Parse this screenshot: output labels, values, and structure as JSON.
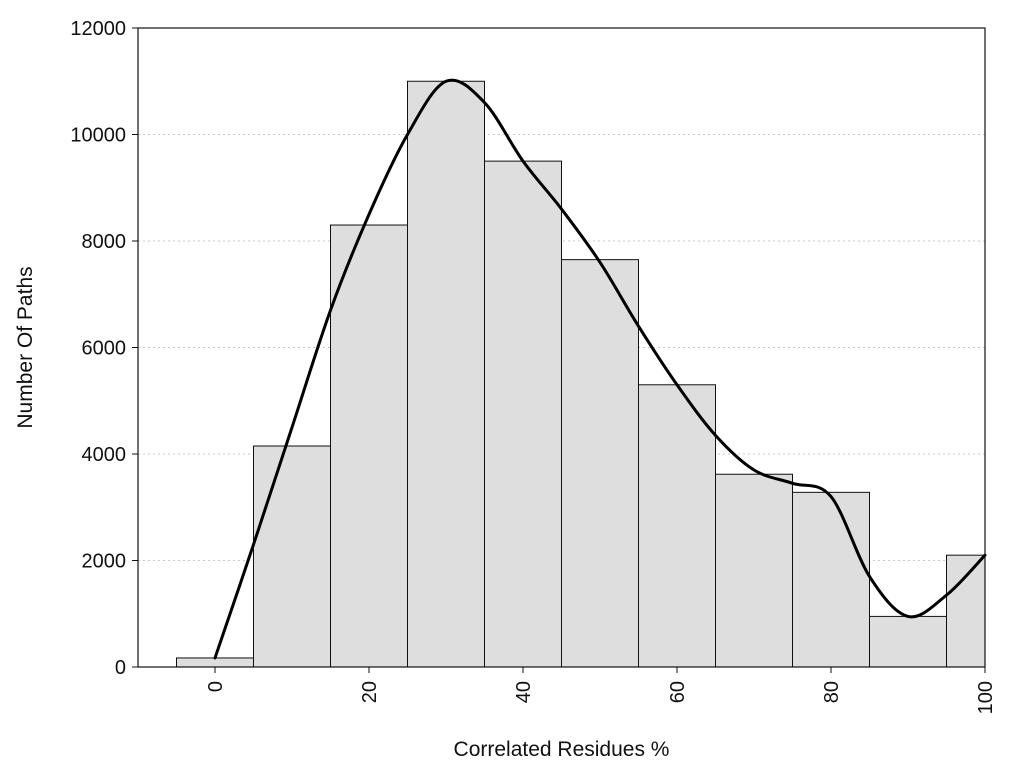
{
  "chart_data": {
    "type": "bar",
    "title": "",
    "xlabel": "Correlated Residues %",
    "ylabel": "Number Of Paths",
    "xlim": [
      -10,
      100
    ],
    "ylim": [
      0,
      12000
    ],
    "grid": true,
    "x_ticks": [
      0,
      20,
      40,
      60,
      80,
      100
    ],
    "y_ticks": [
      0,
      2000,
      4000,
      6000,
      8000,
      10000,
      12000
    ],
    "bin_width": 10,
    "categories": [
      0,
      10,
      20,
      30,
      40,
      50,
      60,
      70,
      80,
      90,
      100
    ],
    "values": [
      170,
      4150,
      8300,
      11000,
      9500,
      7650,
      5300,
      3620,
      3280,
      950,
      2100
    ],
    "curve": {
      "x": [
        0,
        5,
        10,
        15,
        20,
        25,
        30,
        35,
        40,
        45,
        50,
        55,
        60,
        65,
        70,
        75,
        80,
        85,
        90,
        95,
        100
      ],
      "y": [
        170,
        2300,
        4500,
        6700,
        8500,
        10000,
        11000,
        10600,
        9500,
        8600,
        7600,
        6400,
        5300,
        4350,
        3700,
        3450,
        3200,
        1700,
        950,
        1350,
        2100
      ]
    },
    "colors": {
      "bar_fill": "#dedede",
      "bar_stroke": "#111111",
      "curve": "#000000",
      "grid": "#c8c8c8"
    }
  }
}
